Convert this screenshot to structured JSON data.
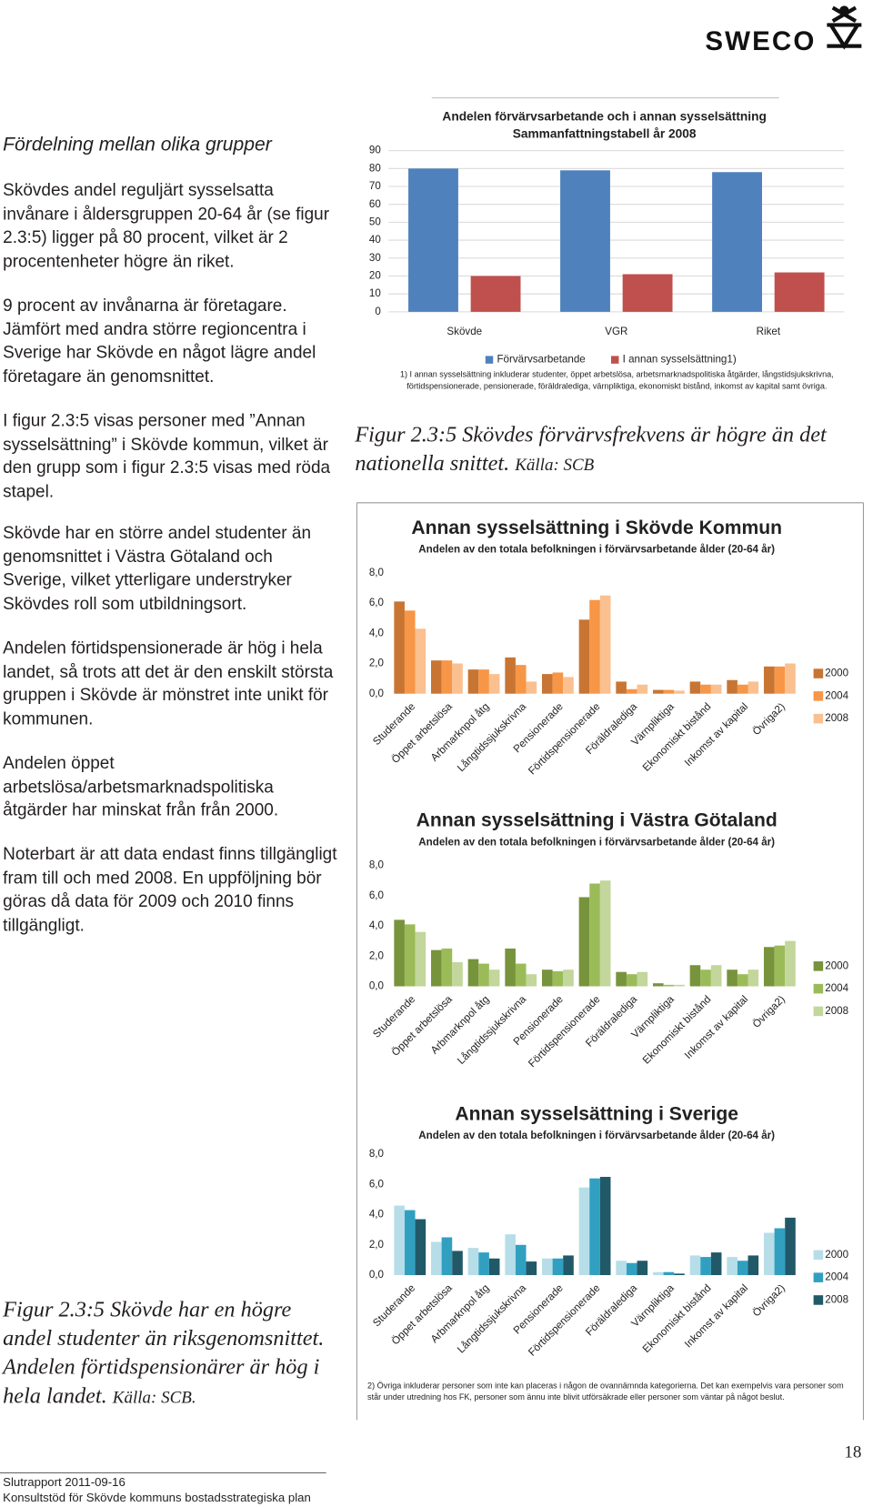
{
  "logo": "SWECO",
  "heading": "Fördelning mellan olika grupper",
  "paragraphs": [
    "Skövdes andel reguljärt sysselsatta invånare i åldersgruppen 20-64 år (se figur 2.3:5) ligger på 80 procent, vilket är 2 procentenheter högre än riket.",
    "9 procent av invånarna är företagare. Jämfört med andra större regioncentra i Sverige har Skövde en något lägre andel företagare än genomsnittet.",
    "I figur 2.3:5 visas personer med ”Annan sysselsättning” i Skövde kommun, vilket är den grupp som i figur 2.3:5 visas med röda stapel.",
    "Skövde har en större andel studenter än genomsnittet i Västra Götaland och Sverige, vilket ytterligare understryker Skövdes roll som utbildningsort.",
    "Andelen förtidspensionerade är hög i hela landet, så trots att det är den enskilt största gruppen i Skövde är mönstret inte unikt för kommunen.",
    "Andelen öppet arbetslösa/arbetsmarknadspolitiska åtgärder har minskat från från 2000.",
    "Noterbart är att data endast finns tillgängligt fram till och med 2008. En uppföljning bör göras då data för 2009 och 2010 finns tillgängligt."
  ],
  "chart_data": [
    {
      "type": "bar",
      "title": "Andelen förvärvsarbetande och i annan sysselsättning",
      "subtitle": "Sammanfattningstabell år 2008",
      "categories": [
        "Skövde",
        "VGR",
        "Riket"
      ],
      "series": [
        {
          "name": "Förvärvsarbetande",
          "color": "#4f81bd",
          "values": [
            80,
            79,
            78
          ]
        },
        {
          "name": "I annan sysselsättning1)",
          "color": "#c0504d",
          "values": [
            20,
            21,
            22
          ]
        }
      ],
      "ylim": [
        0,
        90
      ],
      "yticks": [
        0,
        10,
        20,
        30,
        40,
        50,
        60,
        70,
        80,
        90
      ],
      "grid": true,
      "legend": "bottom",
      "footnote": "1) I annan sysselsättning inkluderar studenter, öppet arbetslösa, arbetsmarknadspolitiska åtgärder, långstidsjukskrivna, förtidspensionerade, pensionerade, föräldralediga, värnpliktiga, ekonomiskt bistånd, inkomst av kapital samt övriga."
    },
    {
      "type": "bar",
      "title": "Annan sysselsättning i Skövde Kommun",
      "subtitle": "Andelen av den totala befolkningen  i förvärvsarbetande  ålder (20-64 år)",
      "categories": [
        "Studerande",
        "Öppet arbetslösa",
        "Arbmarknpol åtg",
        "Långtidssjukskrivna",
        "Pensionerade",
        "Förtidspensionerade",
        "Föräldralediga",
        "Värnpliktiga",
        "Ekonomiskt bistånd",
        "Inkomst av kapital",
        "Övriga2)"
      ],
      "series": [
        {
          "name": "2000",
          "color": "#c87533",
          "values": [
            6.1,
            2.2,
            1.6,
            2.4,
            1.3,
            4.9,
            0.8,
            0.25,
            0.8,
            0.9,
            1.8
          ]
        },
        {
          "name": "2004",
          "color": "#f79646",
          "values": [
            5.5,
            2.2,
            1.6,
            1.9,
            1.4,
            6.2,
            0.3,
            0.25,
            0.6,
            0.6,
            1.8
          ]
        },
        {
          "name": "2008",
          "color": "#fac090",
          "values": [
            4.3,
            2.0,
            1.3,
            0.8,
            1.1,
            6.5,
            0.6,
            0.2,
            0.6,
            0.8,
            2.0
          ]
        }
      ],
      "ylim": [
        0,
        8
      ],
      "yticks": [
        {
          "value": 0,
          "label": "0,0"
        },
        {
          "value": 2,
          "label": "2,0"
        },
        {
          "value": 4,
          "label": "4,0"
        },
        {
          "value": 6,
          "label": "6,0"
        },
        {
          "value": 8,
          "label": "8,0"
        }
      ],
      "grid": false,
      "legend": "right"
    },
    {
      "type": "bar",
      "title": "Annan sysselsättning i Västra Götaland",
      "subtitle": "Andelen av den totala befolkningen  i förvärvsarbetande  ålder (20-64 år)",
      "categories": [
        "Studerande",
        "Öppet arbetslösa",
        "Arbmarknpol åtg",
        "Långtidssjukskrivna",
        "Pensionerade",
        "Förtidspensionerade",
        "Föräldralediga",
        "Värnpliktiga",
        "Ekonomiskt bistånd",
        "Inkomst av kapital",
        "Övriga2)"
      ],
      "series": [
        {
          "name": "2000",
          "color": "#77933c",
          "values": [
            4.4,
            2.4,
            1.8,
            2.5,
            1.1,
            5.9,
            0.95,
            0.2,
            1.4,
            1.1,
            2.6
          ]
        },
        {
          "name": "2004",
          "color": "#9bbb59",
          "values": [
            4.1,
            2.5,
            1.5,
            1.5,
            1.0,
            6.8,
            0.8,
            0.1,
            1.1,
            0.8,
            2.7
          ]
        },
        {
          "name": "2008",
          "color": "#c3d69b",
          "values": [
            3.6,
            1.6,
            1.1,
            0.8,
            1.1,
            7.0,
            0.95,
            0.1,
            1.4,
            1.1,
            3.0
          ]
        }
      ],
      "ylim": [
        0,
        8
      ],
      "yticks": [
        {
          "value": 0,
          "label": "0,0"
        },
        {
          "value": 2,
          "label": "2,0"
        },
        {
          "value": 4,
          "label": "4,0"
        },
        {
          "value": 6,
          "label": "6,0"
        },
        {
          "value": 8,
          "label": "8,0"
        }
      ],
      "grid": false,
      "legend": "right"
    },
    {
      "type": "bar",
      "title": "Annan sysselsättning i Sverige",
      "subtitle": "Andelen av den totala befolkningen  i förvärvsarbetande  ålder (20-64 år)",
      "categories": [
        "Studerande",
        "Öppet arbetslösa",
        "Arbmarknpol åtg",
        "Långtidssjukskrivna",
        "Pensionerade",
        "Förtidspensionerade",
        "Föräldralediga",
        "Värnpliktiga",
        "Ekonomiskt bistånd",
        "Inkomst av kapital",
        "Övriga2)"
      ],
      "series": [
        {
          "name": "2000",
          "color": "#b7dee8",
          "values": [
            4.6,
            2.2,
            1.8,
            2.7,
            1.1,
            5.8,
            0.95,
            0.2,
            1.3,
            1.2,
            2.8
          ]
        },
        {
          "name": "2004",
          "color": "#31a0c0",
          "values": [
            4.3,
            2.5,
            1.5,
            2.0,
            1.1,
            6.4,
            0.8,
            0.2,
            1.2,
            0.95,
            3.1
          ]
        },
        {
          "name": "2008",
          "color": "#215968",
          "values": [
            3.7,
            1.6,
            1.1,
            0.9,
            1.3,
            6.5,
            0.95,
            0.1,
            1.5,
            1.3,
            3.8
          ]
        }
      ],
      "ylim": [
        0,
        8
      ],
      "yticks": [
        {
          "value": 0,
          "label": "0,0"
        },
        {
          "value": 2,
          "label": "2,0"
        },
        {
          "value": 4,
          "label": "4,0"
        },
        {
          "value": 6,
          "label": "6,0"
        },
        {
          "value": 8,
          "label": "8,0"
        }
      ],
      "grid": false,
      "legend": "right",
      "footnote": "2) Övriga inkluderar personer som inte kan placeras i någon de ovannämnda kategorierna. Det kan exempelvis vara personer som står under utredning hos FK, personer som ännu inte blivit utförsäkrade eller personer som väntar på något beslut."
    }
  ],
  "captions": [
    {
      "text": "Figur 2.3:5 Skövdes förvärvsfrekvens är högre än det nationella snittet.",
      "source": "Källa: SCB"
    },
    {
      "text": "Figur 2.3:5 Skövde har en högre andel studenter än riksgenomsnittet. Andelen förtidspensionärer är hög i hela landet.",
      "source": "Källa: SCB."
    }
  ],
  "page_number": "18",
  "footer": [
    "Slutrapport 2011-09-16",
    "Konsultstöd för Skövde kommuns bostadsstrategiska plan"
  ]
}
